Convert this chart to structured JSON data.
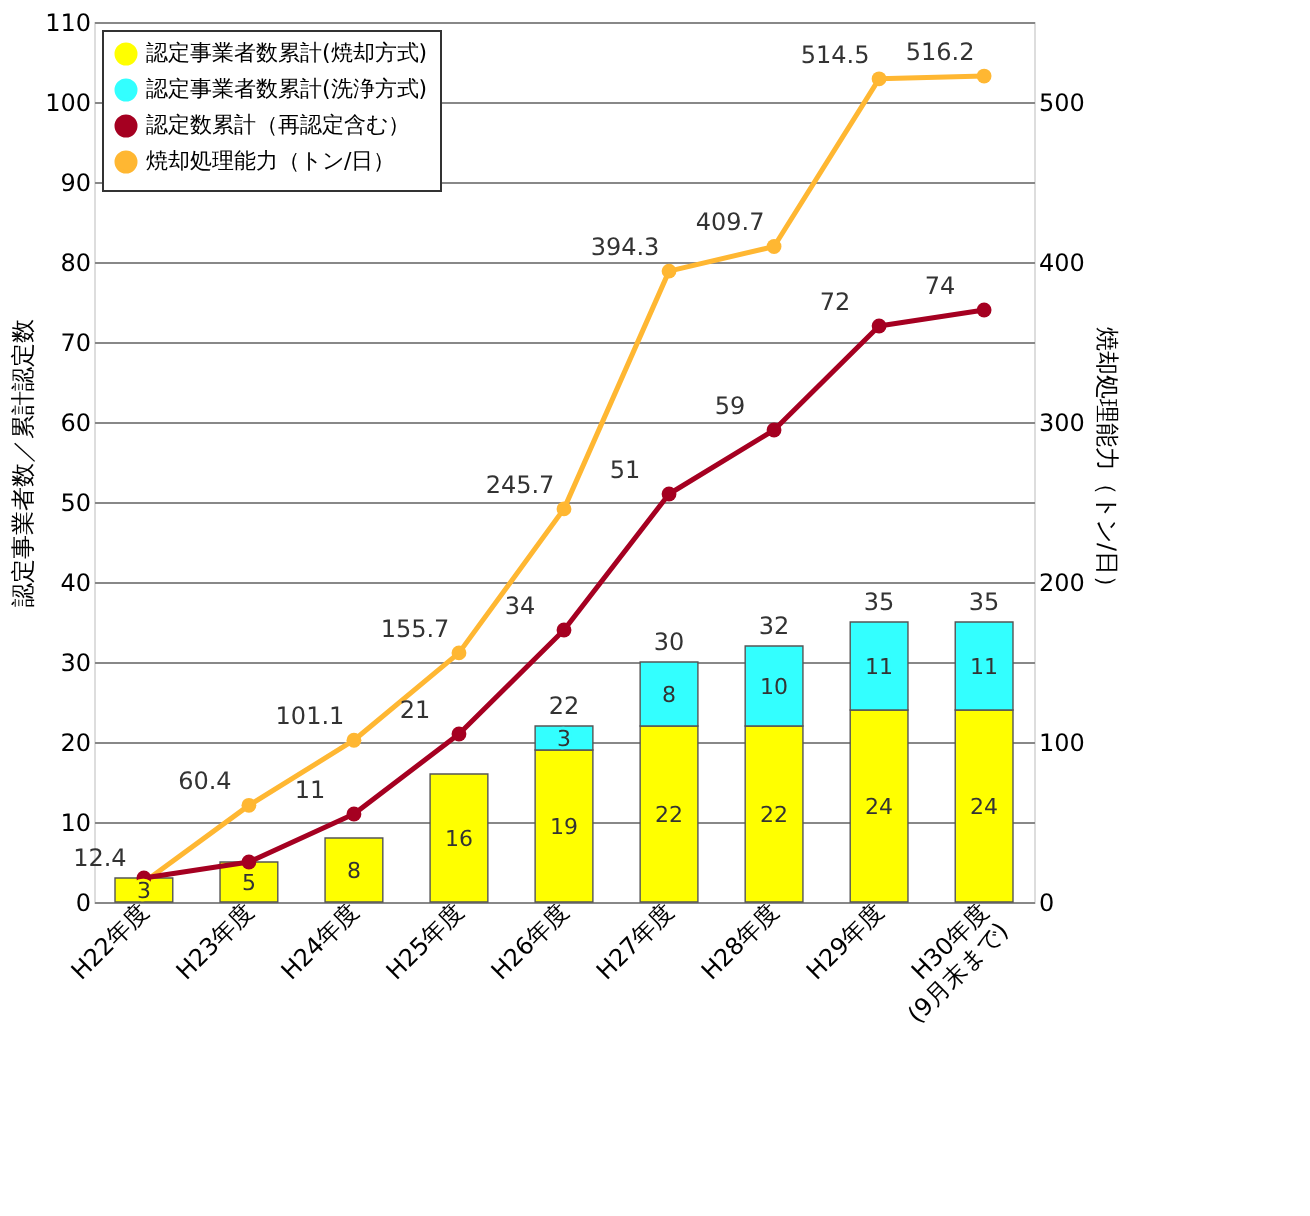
{
  "chart_data": {
    "type": "bar",
    "stacked": true,
    "ylabel": "認定事業者数／累計認定数",
    "y2label": "焼却処理能力（トン/日）",
    "categories": [
      "H22年度",
      "H23年度",
      "H24年度",
      "H25年度",
      "H26年度",
      "H27年度",
      "H28年度",
      "H29年度",
      "H30年度\n(9月末まで)"
    ],
    "series": [
      {
        "name": "認定事業者数累計(焼却方式)",
        "color": "#ffff00",
        "values": [
          3,
          5,
          8,
          16,
          19,
          22,
          22,
          24,
          24
        ],
        "value_labels": [
          "3",
          "5",
          "8",
          "16",
          "19",
          "22",
          "22",
          "24",
          "24"
        ]
      },
      {
        "name": "認定事業者数累計(洗浄方式)",
        "color": "#33ffff",
        "values": [
          null,
          null,
          null,
          null,
          3,
          8,
          10,
          11,
          11
        ],
        "value_labels": [
          null,
          null,
          null,
          null,
          "3",
          "8",
          "10",
          "11",
          "11"
        ]
      },
      {
        "name": "認定数累計（再認定含む）",
        "type": "line",
        "color": "#a50021",
        "marker": "circle",
        "values": [
          3,
          5,
          11,
          21,
          34,
          51,
          59,
          72,
          74
        ],
        "value_labels": [
          null,
          null,
          "11",
          "21",
          "34",
          "51",
          "59",
          "72",
          "74"
        ]
      },
      {
        "name": "焼却処理能力（トン/日）",
        "type": "line",
        "color": "#ffb732",
        "marker": "circle",
        "axis": "y2",
        "values": [
          12.4,
          60.4,
          101.1,
          155.7,
          245.7,
          394.3,
          409.7,
          514.5,
          516.2
        ],
        "value_labels": [
          "12.4",
          "60.4",
          "101.1",
          "155.7",
          "245.7",
          "394.3",
          "409.7",
          "514.5",
          "516.2"
        ]
      }
    ],
    "totals": [
      null,
      null,
      null,
      null,
      "22",
      "30",
      "32",
      "35",
      "35"
    ],
    "ylim": [
      0,
      110
    ],
    "yticks": [
      0,
      10,
      20,
      30,
      40,
      50,
      60,
      70,
      80,
      90,
      100,
      110
    ],
    "y2lim": [
      0,
      550
    ],
    "y2ticks": [
      0,
      100,
      200,
      300,
      400,
      500
    ],
    "grid": "y",
    "legend": "top left"
  }
}
